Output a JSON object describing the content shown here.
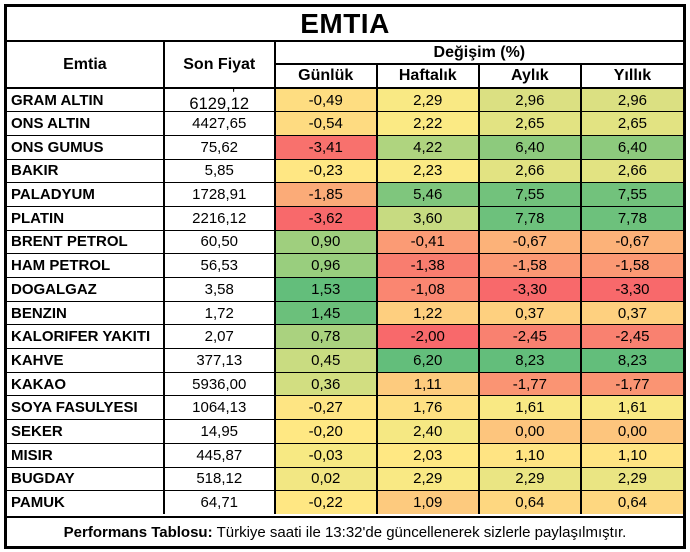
{
  "chart_data": {
    "type": "table",
    "title": "EMTIA",
    "header": {
      "commodity": "Emtia",
      "last_price": "Son Fiyat",
      "change_group": "Değişim (%)",
      "periods": [
        "Günlük",
        "Haftalık",
        "Aylık",
        "Yıllık"
      ]
    },
    "color_scale": {
      "min_negative": "#F8696B",
      "mid_neutral": "#FFEB84",
      "max_positive": "#63BE7B",
      "border": "#000000"
    },
    "rows": [
      {
        "name": "GRAM ALTIN",
        "price": "6129,12",
        "price_offset": true,
        "note_mark": "'",
        "changes": [
          "-0,49",
          "2,29",
          "2,96",
          "2,96"
        ],
        "colors": [
          "#FEDD81",
          "#F9E984",
          "#DBE082",
          "#DBE082"
        ]
      },
      {
        "name": "ONS ALTIN",
        "price": "4427,65",
        "changes": [
          "-0,54",
          "2,22",
          "2,65",
          "2,65"
        ],
        "colors": [
          "#FEDB81",
          "#FBEA84",
          "#E2E382",
          "#E2E382"
        ]
      },
      {
        "name": "ONS GUMUS",
        "price": "75,62",
        "changes": [
          "-3,41",
          "4,22",
          "6,40",
          "6,40"
        ],
        "colors": [
          "#F8716D",
          "#AFD47F",
          "#8DCA7D",
          "#8DCA7D"
        ]
      },
      {
        "name": "BAKIR",
        "price": "5,85",
        "changes": [
          "-0,23",
          "2,23",
          "2,66",
          "2,66"
        ],
        "colors": [
          "#FFE783",
          "#FBEA84",
          "#E2E382",
          "#E2E382"
        ]
      },
      {
        "name": "PALADYUM",
        "price": "1728,91",
        "changes": [
          "-1,85",
          "5,46",
          "7,55",
          "7,55"
        ],
        "colors": [
          "#FBAB78",
          "#7FC67D",
          "#72C27C",
          "#72C27C"
        ]
      },
      {
        "name": "PLATIN",
        "price": "2216,12",
        "changes": [
          "-3,62",
          "3,60",
          "7,78",
          "7,78"
        ],
        "colors": [
          "#F8696B",
          "#C7DB81",
          "#6DC17C",
          "#6DC17C"
        ]
      },
      {
        "name": "BRENT PETROL",
        "price": "60,50",
        "changes": [
          "0,90",
          "-0,41",
          "-0,67",
          "-0,67"
        ],
        "colors": [
          "#9FCF7E",
          "#FB9B75",
          "#FCB279",
          "#FCB279"
        ]
      },
      {
        "name": "HAM PETROL",
        "price": "56,53",
        "changes": [
          "0,96",
          "-1,38",
          "-1,58",
          "-1,58"
        ],
        "colors": [
          "#99CE7E",
          "#F97D6F",
          "#FB9974",
          "#FB9974"
        ]
      },
      {
        "name": "DOGALGAZ",
        "price": "3,58",
        "changes": [
          "1,53",
          "-1,08",
          "-3,30",
          "-3,30"
        ],
        "colors": [
          "#63BE7B",
          "#FA8671",
          "#F8696B",
          "#F8696B"
        ]
      },
      {
        "name": "BENZIN",
        "price": "1,72",
        "changes": [
          "1,45",
          "1,22",
          "0,37",
          "0,37"
        ],
        "colors": [
          "#6BC07B",
          "#FECF7F",
          "#FED07F",
          "#FED07F"
        ]
      },
      {
        "name": "KALORIFER YAKITI",
        "price": "2,07",
        "changes": [
          "0,78",
          "-2,00",
          "-2,45",
          "-2,45"
        ],
        "colors": [
          "#AAD27F",
          "#F8696B",
          "#F98170",
          "#F98170"
        ]
      },
      {
        "name": "KAHVE",
        "price": "377,13",
        "changes": [
          "0,45",
          "6,20",
          "8,23",
          "8,23"
        ],
        "colors": [
          "#C9DC81",
          "#63BE7B",
          "#63BE7B",
          "#63BE7B"
        ]
      },
      {
        "name": "KAKAO",
        "price": "5936,00",
        "changes": [
          "0,36",
          "1,11",
          "-1,77",
          "-1,77"
        ],
        "colors": [
          "#D2DE81",
          "#FDCB7E",
          "#FA9473",
          "#FA9473"
        ]
      },
      {
        "name": "SOYA FASULYESI",
        "price": "1064,13",
        "changes": [
          "-0,27",
          "1,76",
          "1,61",
          "1,61"
        ],
        "colors": [
          "#FEE583",
          "#FEE082",
          "#F9E984",
          "#F9E984"
        ]
      },
      {
        "name": "SEKER",
        "price": "14,95",
        "changes": [
          "-0,20",
          "2,40",
          "0,00",
          "0,00"
        ],
        "colors": [
          "#FFE883",
          "#F5E883",
          "#FDC57D",
          "#FDC57D"
        ]
      },
      {
        "name": "MISIR",
        "price": "445,87",
        "changes": [
          "-0,03",
          "2,03",
          "1,10",
          "1,10"
        ],
        "colors": [
          "#F7E983",
          "#FFE883",
          "#FFE483",
          "#FFE483"
        ]
      },
      {
        "name": "BUGDAY",
        "price": "518,12",
        "changes": [
          "0,02",
          "2,29",
          "2,29",
          "2,29"
        ],
        "colors": [
          "#F2E783",
          "#F9E984",
          "#EAE583",
          "#EAE583"
        ]
      },
      {
        "name": "PAMUK",
        "price": "64,71",
        "changes": [
          "-0,22",
          "1,09",
          "0,64",
          "0,64"
        ],
        "colors": [
          "#FFE783",
          "#FDCA7E",
          "#FED780",
          "#FED780"
        ]
      }
    ],
    "footer_label": "Performans Tablosu:",
    "footer_text": "Türkiye saati ile 13:32'de güncellenerek sizlerle paylaşılmıştır."
  }
}
